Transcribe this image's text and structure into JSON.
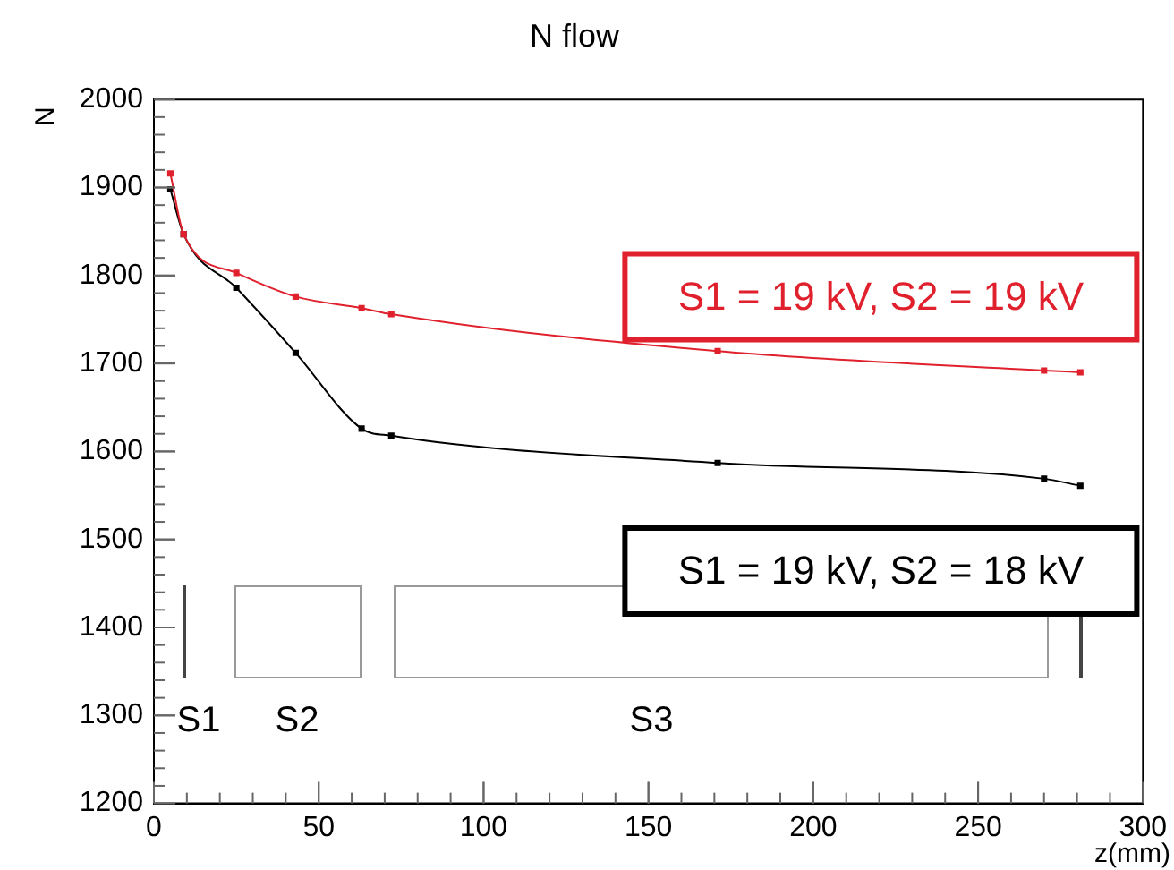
{
  "chart_data": {
    "type": "line",
    "title": "N flow",
    "xlabel": "z(mm)",
    "ylabel": "N",
    "xlim": [
      0,
      300
    ],
    "xticks": [
      0,
      50,
      100,
      150,
      200,
      250,
      300
    ],
    "ylim": [
      1200,
      2000
    ],
    "yticks": [
      1200,
      1300,
      1400,
      1500,
      1600,
      1700,
      1800,
      1900,
      2000
    ],
    "grid": false,
    "legend": false,
    "marker": "square",
    "line_style": "solid",
    "series": [
      {
        "name": "S1 = 19 kV, S2 = 19 kV",
        "color": "#e0202c",
        "x": [
          5,
          9,
          25,
          43,
          63,
          72,
          171,
          270,
          281
        ],
        "values": [
          1916,
          1847,
          1803,
          1776,
          1763,
          1756,
          1714,
          1692,
          1690
        ]
      },
      {
        "name": "S1 = 19 kV, S2 = 18 kV",
        "color": "#000000",
        "x": [
          5,
          9,
          25,
          43,
          63,
          72,
          171,
          270,
          281
        ],
        "values": [
          1898,
          1847,
          1786,
          1712,
          1626,
          1618,
          1587,
          1569,
          1561
        ]
      }
    ],
    "annotations": [
      "S1",
      "S2",
      "S3"
    ]
  }
}
